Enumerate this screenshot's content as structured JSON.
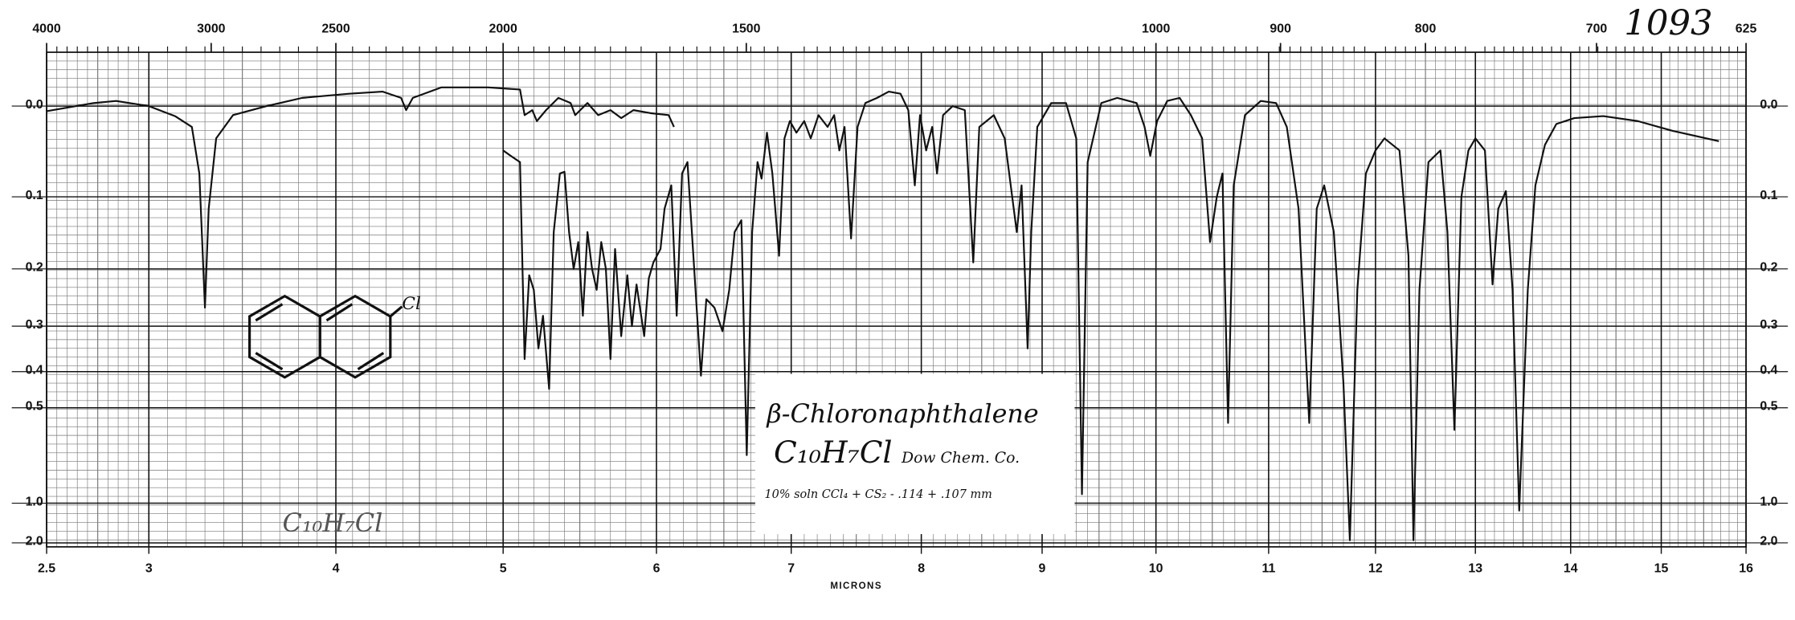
{
  "chart_data": {
    "type": "line",
    "chart_number": "1093",
    "title": "β-Chloronaphthalene",
    "formula": "C₁₀H₇Cl",
    "source": "Dow Chem. Co.",
    "sample": "10% soln CCl₄ + CS₂ - .114 + .107 mm",
    "handwritten_formula": "C₁₀H₇Cl",
    "structure_label": "Cl",
    "x_label": "MICRONS",
    "xlim": [
      2.5,
      16
    ],
    "xticks": [
      2.5,
      3,
      4,
      5,
      6,
      7,
      8,
      9,
      10,
      11,
      12,
      13,
      14,
      15,
      16
    ],
    "x2lim": [
      4000,
      625
    ],
    "x2ticks": [
      4000,
      3000,
      2500,
      2000,
      1500,
      1000,
      900,
      800,
      700,
      625
    ],
    "yscale": "transmittance",
    "ylim": [
      -0.05,
      3
    ],
    "yticks": [
      {
        "value": 0,
        "label": "0.0"
      },
      0.1,
      0.2,
      0.3,
      0.4,
      0.5,
      {
        "value": 1,
        "label": "1.0"
      },
      {
        "value": 2,
        "label": "2.0"
      }
    ],
    "grid": true,
    "series": [
      {
        "color": "#111111",
        "x": [
          2.5,
          2.73,
          2.84,
          3.0,
          3.14,
          3.23,
          3.27,
          3.3,
          3.32,
          3.36,
          3.45,
          3.63,
          3.82,
          4.08,
          4.28,
          4.39,
          4.42,
          4.46,
          4.63,
          4.91,
          5.11,
          5.14,
          5.19,
          5.22,
          5.28,
          5.36,
          5.44,
          5.47,
          5.55,
          5.62,
          5.7,
          5.77,
          5.85,
          5.96,
          6.09,
          6.13
        ],
        "values": [
          0.005,
          -0.003,
          -0.005,
          0,
          0.01,
          0.021,
          0.072,
          0.265,
          0.115,
          0.033,
          0.009,
          0,
          -0.008,
          -0.012,
          -0.014,
          -0.008,
          0.004,
          -0.008,
          -0.018,
          -0.018,
          -0.016,
          0.009,
          0.004,
          0.015,
          0.004,
          -0.008,
          -0.003,
          0.009,
          -0.003,
          0.009,
          0.004,
          0.012,
          0.004,
          0.007,
          0.009,
          0.021
        ]
      },
      {
        "color": "#111111",
        "x": [
          5.0,
          5.05,
          5.11,
          5.14,
          5.17,
          5.2,
          5.23,
          5.26,
          5.3,
          5.33,
          5.37,
          5.4,
          5.43,
          5.46,
          5.49,
          5.52,
          5.55,
          5.58,
          5.61,
          5.64,
          5.67,
          5.7,
          5.73,
          5.77,
          5.81,
          5.84,
          5.87,
          5.92,
          5.95,
          5.98,
          6.03,
          6.06,
          6.11,
          6.15,
          6.19,
          6.23,
          6.28,
          6.33,
          6.37,
          6.43,
          6.49,
          6.54,
          6.58,
          6.63,
          6.67,
          6.71,
          6.75,
          6.78,
          6.82,
          6.86,
          6.91,
          6.95,
          6.99,
          7.04,
          7.1,
          7.15,
          7.21,
          7.28,
          7.33,
          7.37,
          7.41,
          7.46,
          7.51,
          7.57,
          7.66,
          7.75,
          7.84,
          7.9,
          7.95,
          7.99,
          8.04,
          8.09,
          8.13,
          8.18,
          8.26,
          8.36,
          8.43,
          8.48,
          8.6,
          8.69,
          8.79,
          8.83,
          8.88,
          8.91,
          8.96,
          9.08,
          9.21,
          9.3,
          9.35,
          9.4,
          9.52,
          9.66,
          9.83,
          9.9,
          9.95,
          10.01,
          10.1,
          10.21,
          10.31,
          10.41,
          10.48,
          10.54,
          10.59,
          10.64,
          10.69,
          10.79,
          10.93,
          11.07,
          11.17,
          11.28,
          11.38,
          11.45,
          11.52,
          11.61,
          11.7,
          11.76,
          11.83,
          11.91,
          12.0,
          12.09,
          12.24,
          12.33,
          12.38,
          12.44,
          12.53,
          12.65,
          12.72,
          12.79,
          12.86,
          12.93,
          13.0,
          13.1,
          13.18,
          13.24,
          13.32,
          13.39,
          13.46,
          13.55,
          13.63,
          13.73,
          13.85,
          14.04,
          14.36,
          14.74,
          15.13,
          15.68
        ],
        "values": [
          0.046,
          0.052,
          0.059,
          0.37,
          0.21,
          0.234,
          0.346,
          0.28,
          0.445,
          0.146,
          0.072,
          0.07,
          0.146,
          0.2,
          0.16,
          0.28,
          0.146,
          0.2,
          0.234,
          0.16,
          0.2,
          0.37,
          0.17,
          0.32,
          0.21,
          0.3,
          0.225,
          0.32,
          0.215,
          0.19,
          0.17,
          0.115,
          0.086,
          0.28,
          0.072,
          0.059,
          0.2,
          0.41,
          0.25,
          0.265,
          0.31,
          0.234,
          0.146,
          0.13,
          0.68,
          0.146,
          0.059,
          0.078,
          0.027,
          0.072,
          0.18,
          0.033,
          0.015,
          0.027,
          0.015,
          0.033,
          0.009,
          0.021,
          0.009,
          0.046,
          0.021,
          0.155,
          0.021,
          -0.003,
          -0.008,
          -0.014,
          -0.012,
          0.004,
          0.086,
          0.009,
          0.046,
          0.021,
          0.072,
          0.009,
          0,
          0.004,
          0.19,
          0.021,
          0.009,
          0.033,
          0.146,
          0.086,
          0.346,
          0.146,
          0.021,
          -0.003,
          -0.003,
          0.033,
          0.92,
          0.059,
          -0.003,
          -0.008,
          -0.003,
          0.021,
          0.052,
          0.015,
          -0.005,
          -0.008,
          0.009,
          0.033,
          0.16,
          0.1,
          0.072,
          0.55,
          0.086,
          0.009,
          -0.005,
          -0.003,
          0.021,
          0.115,
          0.55,
          0.115,
          0.086,
          0.146,
          0.43,
          1.8,
          0.234,
          0.072,
          0.046,
          0.033,
          0.046,
          0.18,
          1.8,
          0.234,
          0.059,
          0.046,
          0.146,
          0.575,
          0.1,
          0.046,
          0.033,
          0.046,
          0.225,
          0.115,
          0.093,
          0.234,
          1.08,
          0.234,
          0.086,
          0.04,
          0.018,
          0.012,
          0.01,
          0.015,
          0.025,
          0.036
        ]
      }
    ]
  }
}
